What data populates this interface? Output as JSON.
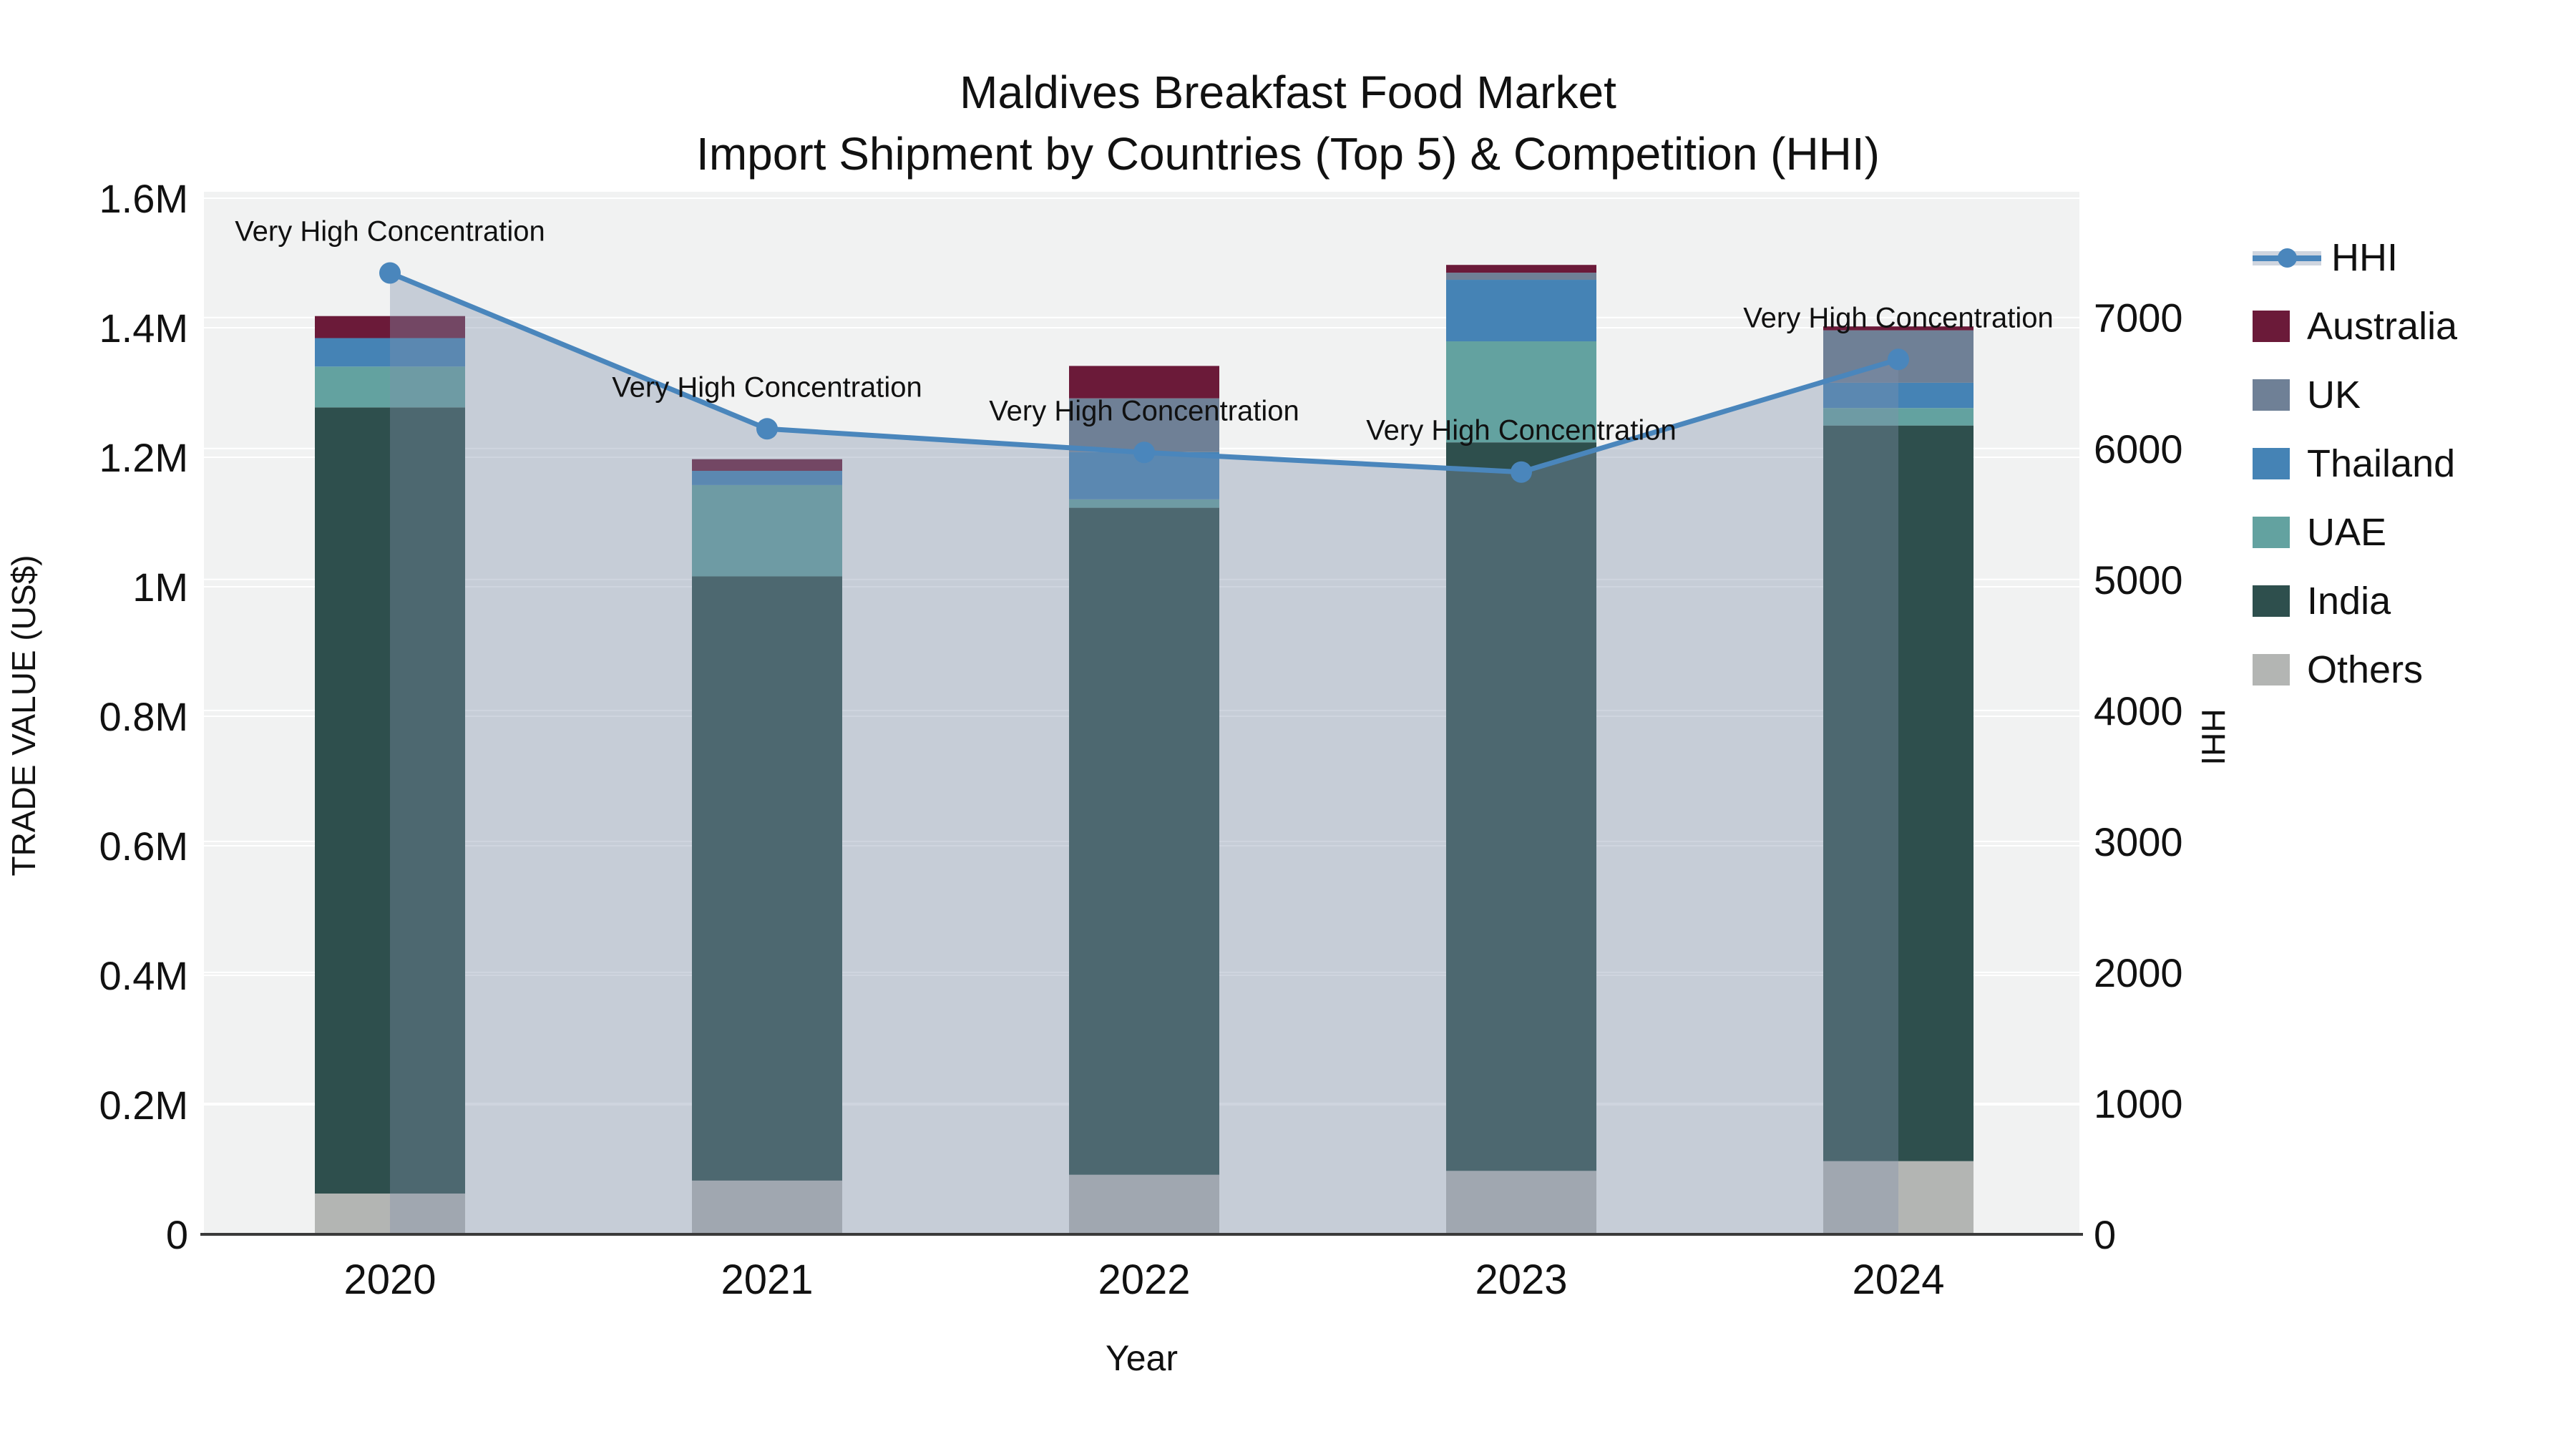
{
  "title": {
    "line1": "Maldives Breakfast Food Market",
    "line2": "Import Shipment by Countries (Top 5) & Competition (HHI)"
  },
  "axes": {
    "x_label": "Year",
    "y_left_label": "TRADE VALUE (US$)",
    "y_right_label": "HHI"
  },
  "colors": {
    "plot_bg": "#f1f2f2",
    "grid": "#ffffff",
    "axis_line": "#3a3a3a",
    "text": "#111111",
    "hhi_line": "#4a86bc",
    "hhi_fill": "rgba(130,145,170,0.38)"
  },
  "legend": {
    "items": [
      {
        "label": "HHI",
        "type": "line",
        "color": "#4a86bc"
      },
      {
        "label": "Australia",
        "type": "box",
        "color": "#6b1a39"
      },
      {
        "label": "UK",
        "type": "box",
        "color": "#6f8096"
      },
      {
        "label": "Thailand",
        "type": "box",
        "color": "#4583b5"
      },
      {
        "label": "UAE",
        "type": "box",
        "color": "#63a2a0"
      },
      {
        "label": "India",
        "type": "box",
        "color": "#2e4f4d"
      },
      {
        "label": "Others",
        "type": "box",
        "color": "#b3b5b3"
      }
    ]
  },
  "chart_data": {
    "type": "bar",
    "subtype": "stacked-bar-with-line",
    "title": "Maldives Breakfast Food Market — Import Shipment by Countries (Top 5) & Competition (HHI)",
    "xlabel": "Year",
    "ylabel": "TRADE VALUE (US$)",
    "ylabel2": "HHI",
    "categories": [
      "2020",
      "2021",
      "2022",
      "2023",
      "2024"
    ],
    "series": [
      {
        "name": "Others",
        "color": "#b3b5b3",
        "values": [
          63000,
          83000,
          92000,
          98000,
          113000
        ]
      },
      {
        "name": "India",
        "color": "#2e4f4d",
        "values": [
          1214000,
          933000,
          1030000,
          1125000,
          1136000
        ]
      },
      {
        "name": "UAE",
        "color": "#63a2a0",
        "values": [
          63000,
          141000,
          13000,
          156000,
          27000
        ]
      },
      {
        "name": "Thailand",
        "color": "#4583b5",
        "values": [
          44000,
          22000,
          73000,
          95000,
          39000
        ]
      },
      {
        "name": "UK",
        "color": "#6f8096",
        "values": [
          0,
          0,
          83000,
          11000,
          81000
        ]
      },
      {
        "name": "Australia",
        "color": "#6b1a39",
        "values": [
          34000,
          18000,
          50000,
          12000,
          6000
        ]
      }
    ],
    "line_series": {
      "name": "HHI",
      "color": "#4a86bc",
      "values": [
        7340,
        6150,
        5970,
        5820,
        6680
      ]
    },
    "annotations": [
      {
        "x": "2020",
        "text": "Very High Concentration"
      },
      {
        "x": "2021",
        "text": "Very High Concentration"
      },
      {
        "x": "2022",
        "text": "Very High Concentration"
      },
      {
        "x": "2023",
        "text": "Very High Concentration"
      },
      {
        "x": "2024",
        "text": "Very High Concentration"
      }
    ],
    "ylim_left": [
      0,
      1600000
    ],
    "ylim_right": [
      0,
      7960
    ],
    "grid": true,
    "legend_position": "right",
    "yticks_left": [
      {
        "v": 0,
        "label": "0"
      },
      {
        "v": 200000,
        "label": "0.2M"
      },
      {
        "v": 400000,
        "label": "0.4M"
      },
      {
        "v": 600000,
        "label": "0.6M"
      },
      {
        "v": 800000,
        "label": "0.8M"
      },
      {
        "v": 1000000,
        "label": "1M"
      },
      {
        "v": 1200000,
        "label": "1.2M"
      },
      {
        "v": 1400000,
        "label": "1.4M"
      },
      {
        "v": 1600000,
        "label": "1.6M"
      }
    ],
    "yticks_right": [
      {
        "v": 0,
        "label": "0"
      },
      {
        "v": 1000,
        "label": "1000"
      },
      {
        "v": 2000,
        "label": "2000"
      },
      {
        "v": 3000,
        "label": "3000"
      },
      {
        "v": 4000,
        "label": "4000"
      },
      {
        "v": 5000,
        "label": "5000"
      },
      {
        "v": 6000,
        "label": "6000"
      },
      {
        "v": 7000,
        "label": "7000"
      }
    ]
  }
}
